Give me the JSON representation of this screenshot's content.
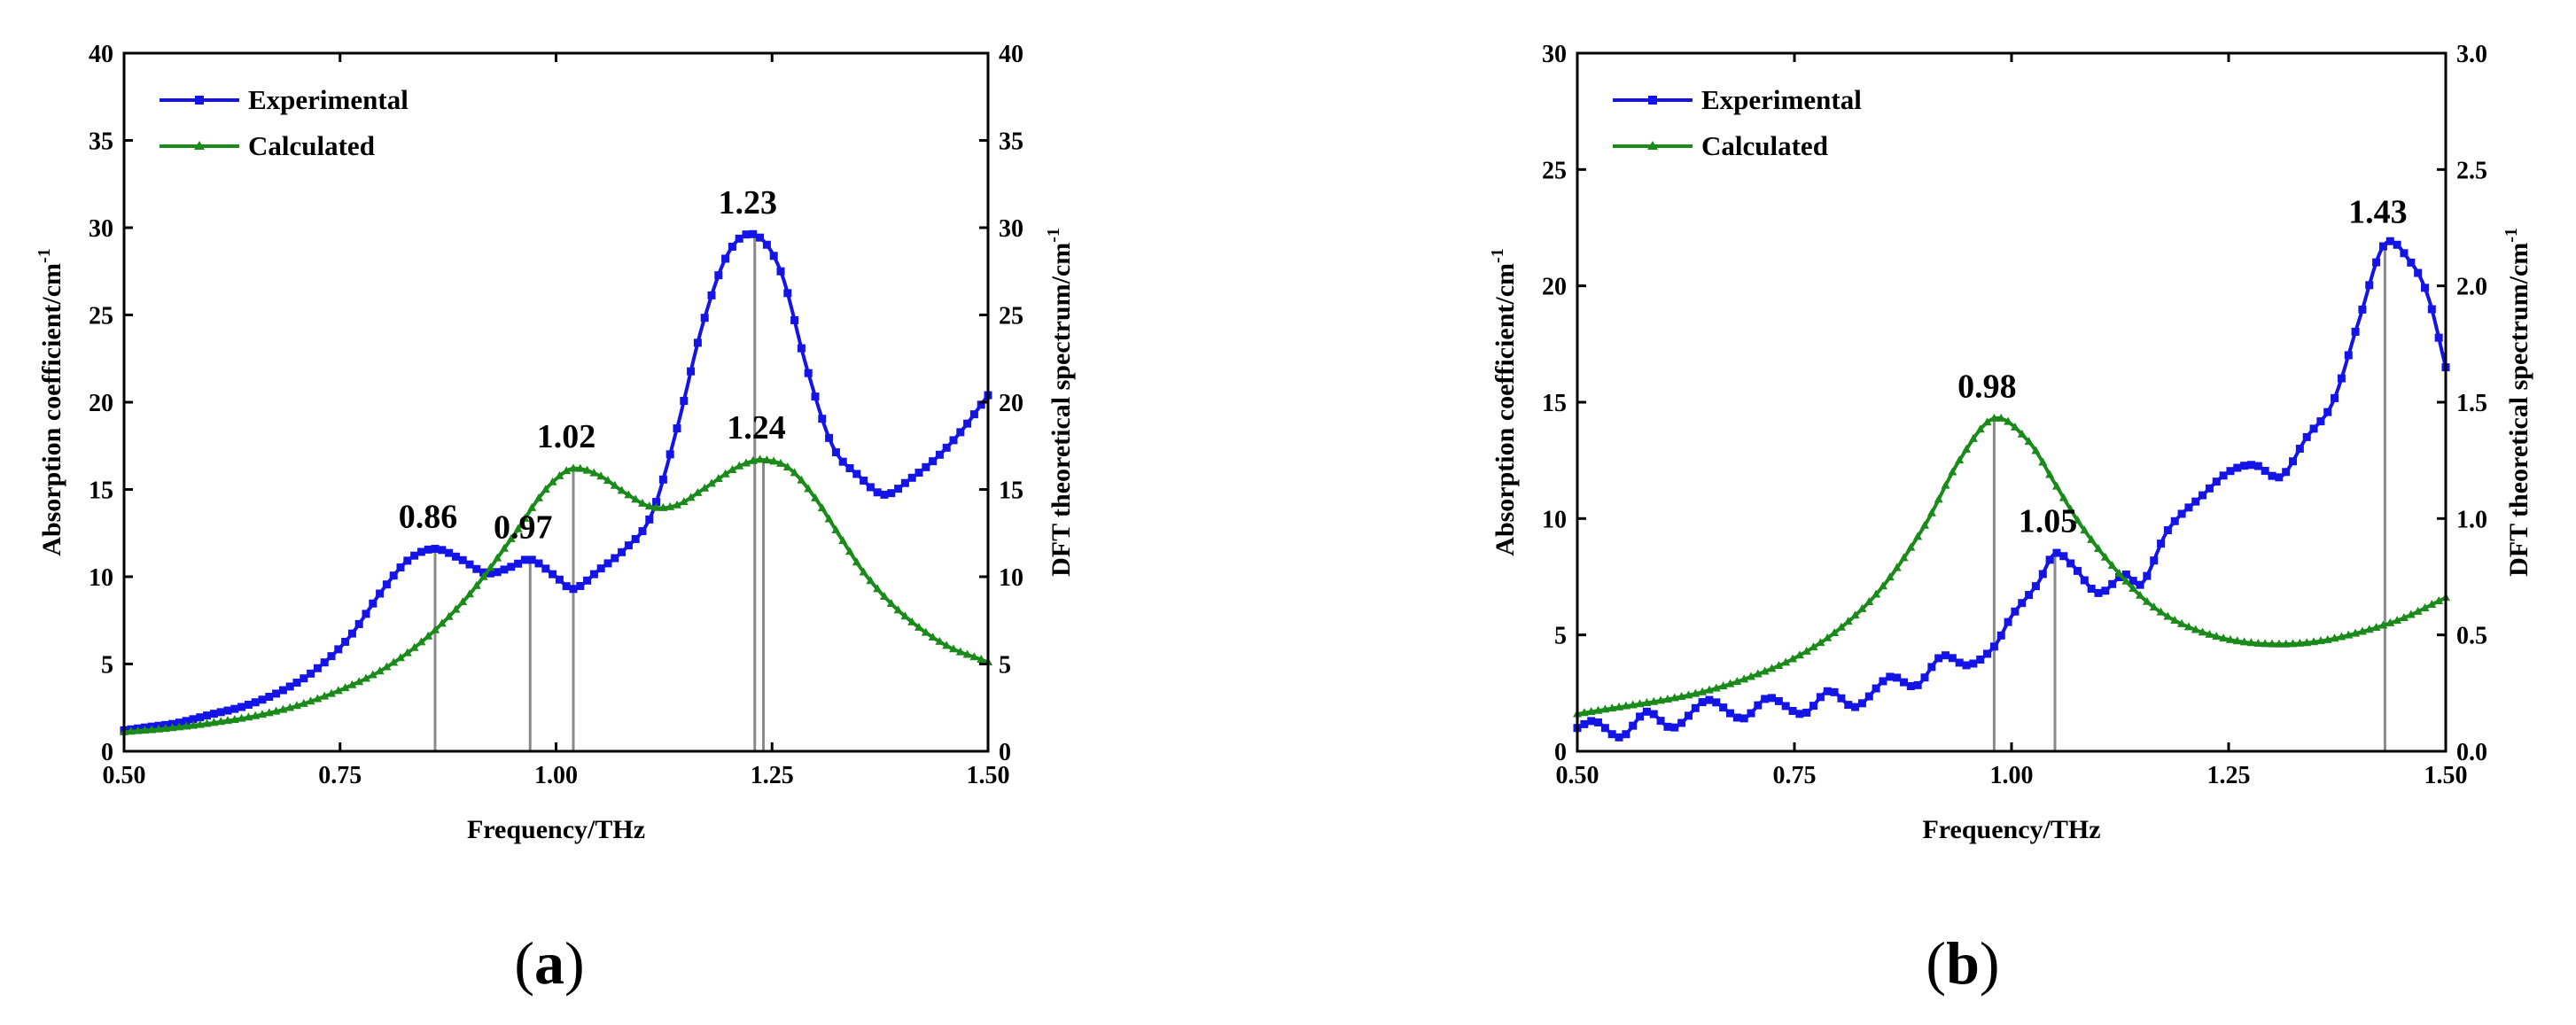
{
  "figure": {
    "panel_labels": [
      "a",
      "b"
    ]
  },
  "chart_data": [
    {
      "type": "line",
      "panel": "a",
      "xlabel": "Frequency/THz",
      "ylabel": "Absorption coefficient/cm",
      "ylabel_superscript": "-1",
      "y2label": "DFT theoretical spectrum/cm",
      "y2label_superscript": "-1",
      "xlim": [
        0.5,
        1.5
      ],
      "ylim": [
        0,
        40
      ],
      "y2lim": [
        0,
        40
      ],
      "xticks": [
        0.5,
        0.75,
        1.0,
        1.25,
        1.5
      ],
      "xtick_labels": [
        "0.50",
        "0.75",
        "1.00",
        "1.25",
        "1.50"
      ],
      "yticks": [
        0,
        5,
        10,
        15,
        20,
        25,
        30,
        35,
        40
      ],
      "ytick_labels": [
        "0",
        "5",
        "10",
        "15",
        "20",
        "25",
        "30",
        "35",
        "40"
      ],
      "y2ticks": [
        0,
        5,
        10,
        15,
        20,
        25,
        30,
        35,
        40
      ],
      "y2tick_labels": [
        "0",
        "5",
        "10",
        "15",
        "20",
        "25",
        "30",
        "35",
        "40"
      ],
      "legend_position": "top-left",
      "series": [
        {
          "name": "Experimental",
          "color": "#1414e6",
          "marker": "square",
          "axis": "left",
          "x": [
            0.5,
            0.53,
            0.56,
            0.6,
            0.64,
            0.68,
            0.72,
            0.76,
            0.8,
            0.83,
            0.86,
            0.89,
            0.92,
            0.95,
            0.97,
            1.0,
            1.02,
            1.05,
            1.08,
            1.11,
            1.14,
            1.17,
            1.2,
            1.23,
            1.26,
            1.29,
            1.32,
            1.35,
            1.38,
            1.41,
            1.44,
            1.47,
            1.5
          ],
          "y": [
            1.2,
            1.4,
            1.6,
            2.1,
            2.6,
            3.4,
            4.6,
            6.5,
            9.3,
            11.0,
            11.6,
            11.0,
            10.2,
            10.6,
            11.0,
            10.0,
            9.3,
            10.4,
            11.6,
            13.5,
            18.5,
            24.5,
            28.6,
            29.6,
            27.5,
            22.0,
            17.5,
            15.8,
            14.7,
            15.6,
            16.8,
            18.4,
            20.4
          ]
        },
        {
          "name": "Calculated",
          "color": "#1a8a1a",
          "marker": "triangle",
          "axis": "right",
          "x": [
            0.5,
            0.55,
            0.6,
            0.65,
            0.7,
            0.75,
            0.8,
            0.85,
            0.9,
            0.95,
            0.98,
            1.0,
            1.02,
            1.05,
            1.08,
            1.11,
            1.14,
            1.17,
            1.2,
            1.22,
            1.24,
            1.27,
            1.3,
            1.33,
            1.36,
            1.4,
            1.45,
            1.5
          ],
          "y": [
            1.1,
            1.3,
            1.6,
            2.0,
            2.6,
            3.5,
            4.7,
            6.5,
            9.0,
            12.3,
            14.5,
            15.6,
            16.2,
            15.8,
            14.8,
            14.0,
            14.1,
            15.0,
            16.0,
            16.5,
            16.7,
            16.2,
            14.5,
            12.2,
            10.0,
            7.9,
            6.1,
            5.1
          ]
        }
      ],
      "peak_lines": [
        0.86,
        0.97,
        1.02,
        1.23,
        1.24
      ],
      "annotations": [
        {
          "text": "0.86",
          "x": 0.86,
          "y": 11.6
        },
        {
          "text": "0.97",
          "x": 0.97,
          "y": 11.0
        },
        {
          "text": "1.02",
          "x": 1.02,
          "y": 16.2
        },
        {
          "text": "1.23",
          "x": 1.23,
          "y": 29.6
        },
        {
          "text": "1.24",
          "x": 1.24,
          "y": 16.7
        }
      ]
    },
    {
      "type": "line",
      "panel": "b",
      "xlabel": "Frequency/THz",
      "ylabel": "Absorption coefficient/cm",
      "ylabel_superscript": "-1",
      "y2label": "DFT theoretical spectrum/cm",
      "y2label_superscript": "-1",
      "xlim": [
        0.5,
        1.5
      ],
      "ylim": [
        0,
        30
      ],
      "y2lim": [
        0,
        3.0
      ],
      "xticks": [
        0.5,
        0.75,
        1.0,
        1.25,
        1.5
      ],
      "xtick_labels": [
        "0.50",
        "0.75",
        "1.00",
        "1.25",
        "1.50"
      ],
      "yticks": [
        0,
        5,
        10,
        15,
        20,
        25,
        30
      ],
      "ytick_labels": [
        "0",
        "5",
        "10",
        "15",
        "20",
        "25",
        "30"
      ],
      "y2ticks": [
        0,
        0.5,
        1.0,
        1.5,
        2.0,
        2.5,
        3.0
      ],
      "y2tick_labels": [
        "0.0",
        "0.5",
        "1.0",
        "1.5",
        "2.0",
        "2.5",
        "3.0"
      ],
      "legend_position": "top-left",
      "series": [
        {
          "name": "Experimental",
          "color": "#1414e6",
          "marker": "square",
          "axis": "left",
          "x": [
            0.5,
            0.52,
            0.55,
            0.58,
            0.61,
            0.65,
            0.69,
            0.72,
            0.76,
            0.79,
            0.82,
            0.86,
            0.89,
            0.92,
            0.95,
            0.98,
            1.0,
            1.03,
            1.05,
            1.07,
            1.1,
            1.13,
            1.15,
            1.18,
            1.22,
            1.25,
            1.28,
            1.31,
            1.34,
            1.37,
            1.4,
            1.43,
            1.46,
            1.48,
            1.5
          ],
          "y": [
            1.0,
            1.3,
            0.6,
            1.7,
            1.0,
            2.2,
            1.4,
            2.3,
            1.6,
            2.6,
            1.9,
            3.2,
            2.8,
            4.1,
            3.7,
            4.5,
            5.8,
            7.2,
            8.5,
            8.0,
            6.8,
            7.6,
            7.2,
            9.5,
            11.0,
            12.0,
            12.3,
            11.8,
            13.5,
            15.0,
            18.5,
            21.8,
            21.0,
            19.5,
            16.5
          ]
        },
        {
          "name": "Calculated",
          "color": "#1a8a1a",
          "marker": "triangle",
          "axis": "right",
          "x": [
            0.5,
            0.55,
            0.6,
            0.65,
            0.7,
            0.75,
            0.8,
            0.85,
            0.9,
            0.94,
            0.98,
            1.02,
            1.05,
            1.08,
            1.12,
            1.16,
            1.2,
            1.25,
            1.3,
            1.35,
            1.4,
            1.45,
            1.5
          ],
          "y": [
            0.16,
            0.19,
            0.22,
            0.26,
            0.32,
            0.4,
            0.52,
            0.7,
            0.97,
            1.25,
            1.43,
            1.33,
            1.15,
            0.97,
            0.78,
            0.63,
            0.54,
            0.48,
            0.46,
            0.47,
            0.51,
            0.57,
            0.66
          ]
        }
      ],
      "peak_lines": [
        0.98,
        1.05,
        1.43
      ],
      "annotations": [
        {
          "text": "0.98",
          "x": 0.98,
          "y": 14.3
        },
        {
          "text": "1.05",
          "x": 1.05,
          "y": 8.5
        },
        {
          "text": "1.43",
          "x": 1.43,
          "y": 21.8
        }
      ]
    }
  ]
}
